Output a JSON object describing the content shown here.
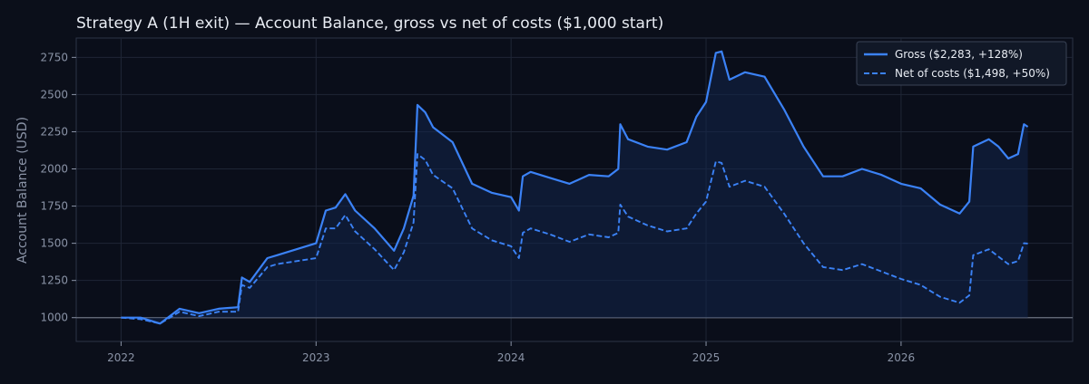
{
  "chart_data": {
    "type": "line",
    "title": "Strategy A (1H exit) — Account Balance, gross vs net of costs ($1,000 start)",
    "xlabel": "",
    "ylabel": "Account Balance (USD)",
    "xlim": [
      2021.77,
      2026.88
    ],
    "ylim": [
      840,
      2880
    ],
    "x_ticks": [
      2022,
      2023,
      2024,
      2025,
      2026
    ],
    "x_tick_labels": [
      "2022",
      "2023",
      "2024",
      "2025",
      "2026"
    ],
    "y_ticks": [
      1000,
      1250,
      1500,
      1750,
      2000,
      2250,
      2500,
      2750
    ],
    "y_tick_labels": [
      "1000",
      "1250",
      "1500",
      "1750",
      "2000",
      "2250",
      "2500",
      "2750"
    ],
    "grid": true,
    "legend_position": "top-right",
    "reference_line": 1000,
    "x": [
      2022.0,
      2022.1,
      2022.2,
      2022.3,
      2022.4,
      2022.5,
      2022.6,
      2022.62,
      2022.66,
      2022.75,
      2022.8,
      2022.9,
      2023.0,
      2023.05,
      2023.1,
      2023.15,
      2023.2,
      2023.3,
      2023.4,
      2023.45,
      2023.5,
      2023.52,
      2023.56,
      2023.6,
      2023.7,
      2023.8,
      2023.9,
      2024.0,
      2024.04,
      2024.06,
      2024.1,
      2024.2,
      2024.3,
      2024.4,
      2024.5,
      2024.55,
      2024.56,
      2024.6,
      2024.7,
      2024.8,
      2024.9,
      2024.95,
      2025.0,
      2025.05,
      2025.08,
      2025.12,
      2025.2,
      2025.3,
      2025.4,
      2025.5,
      2025.6,
      2025.7,
      2025.8,
      2025.9,
      2026.0,
      2026.1,
      2026.2,
      2026.3,
      2026.35,
      2026.37,
      2026.45,
      2026.5,
      2026.55,
      2026.6,
      2026.63,
      2026.65
    ],
    "series": [
      {
        "name": "Gross ($2,283, +128%)",
        "color": "#3b82f6",
        "style": "solid",
        "values": [
          1000,
          1000,
          960,
          1060,
          1030,
          1060,
          1070,
          1270,
          1240,
          1400,
          1420,
          1460,
          1500,
          1720,
          1740,
          1830,
          1720,
          1600,
          1450,
          1600,
          1820,
          2430,
          2380,
          2280,
          2180,
          1900,
          1840,
          1810,
          1720,
          1950,
          1980,
          1940,
          1900,
          1960,
          1950,
          2000,
          2300,
          2200,
          2150,
          2130,
          2180,
          2350,
          2450,
          2780,
          2790,
          2600,
          2650,
          2620,
          2400,
          2150,
          1950,
          1950,
          2000,
          1960,
          1900,
          1870,
          1760,
          1700,
          1780,
          2150,
          2200,
          2150,
          2070,
          2100,
          2300,
          2283
        ]
      },
      {
        "name": "Net of costs ($1,498, +50%)",
        "color": "#3b82f6",
        "style": "dashed",
        "values": [
          1000,
          990,
          960,
          1040,
          1010,
          1040,
          1040,
          1220,
          1200,
          1340,
          1360,
          1380,
          1400,
          1600,
          1600,
          1690,
          1580,
          1460,
          1320,
          1440,
          1640,
          2100,
          2060,
          1960,
          1870,
          1600,
          1520,
          1480,
          1400,
          1570,
          1600,
          1560,
          1510,
          1560,
          1540,
          1570,
          1760,
          1680,
          1620,
          1580,
          1600,
          1700,
          1780,
          2050,
          2040,
          1880,
          1920,
          1880,
          1700,
          1500,
          1340,
          1320,
          1360,
          1310,
          1260,
          1220,
          1140,
          1100,
          1150,
          1420,
          1460,
          1410,
          1360,
          1380,
          1500,
          1498
        ]
      }
    ]
  }
}
